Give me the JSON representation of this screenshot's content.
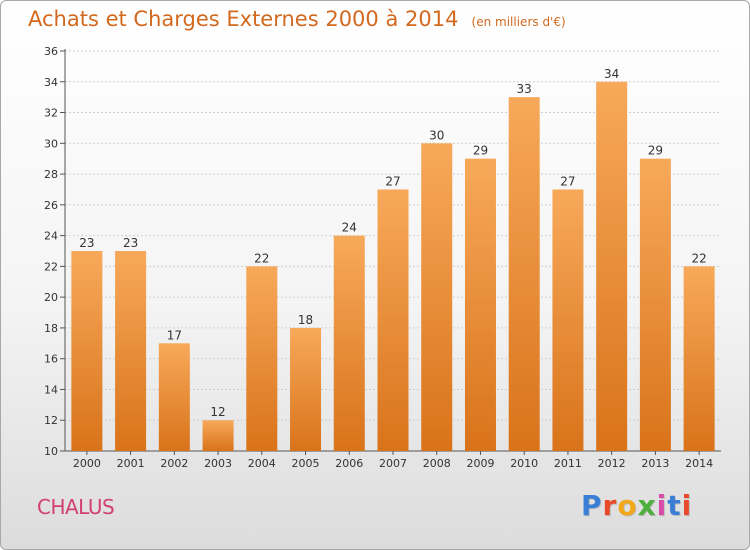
{
  "header": {
    "title": "Achats et Charges Externes 2000 à 2014",
    "unit": "(en milliers d'€)"
  },
  "footer": {
    "town": "CHALUS",
    "brand": "Proxiti",
    "brand_colors": [
      "#3a7fd5",
      "#e8492b",
      "#f2a81d",
      "#4caf3c",
      "#d94aa8",
      "#3a7fd5",
      "#e8492b"
    ]
  },
  "chart_data": {
    "type": "bar",
    "categories": [
      "2000",
      "2001",
      "2002",
      "2003",
      "2004",
      "2005",
      "2006",
      "2007",
      "2008",
      "2009",
      "2010",
      "2011",
      "2012",
      "2013",
      "2014"
    ],
    "values": [
      23,
      23,
      17,
      12,
      22,
      18,
      24,
      27,
      30,
      29,
      33,
      27,
      34,
      29,
      22
    ],
    "title": "Achats et Charges Externes 2000 à 2014",
    "ylim": [
      10,
      36
    ],
    "yticks": [
      10,
      12,
      14,
      16,
      18,
      20,
      22,
      24,
      26,
      28,
      30,
      32,
      34,
      36
    ],
    "grid": true,
    "bar_color_top": "#f7a95a",
    "bar_color_bottom": "#d9731a"
  }
}
